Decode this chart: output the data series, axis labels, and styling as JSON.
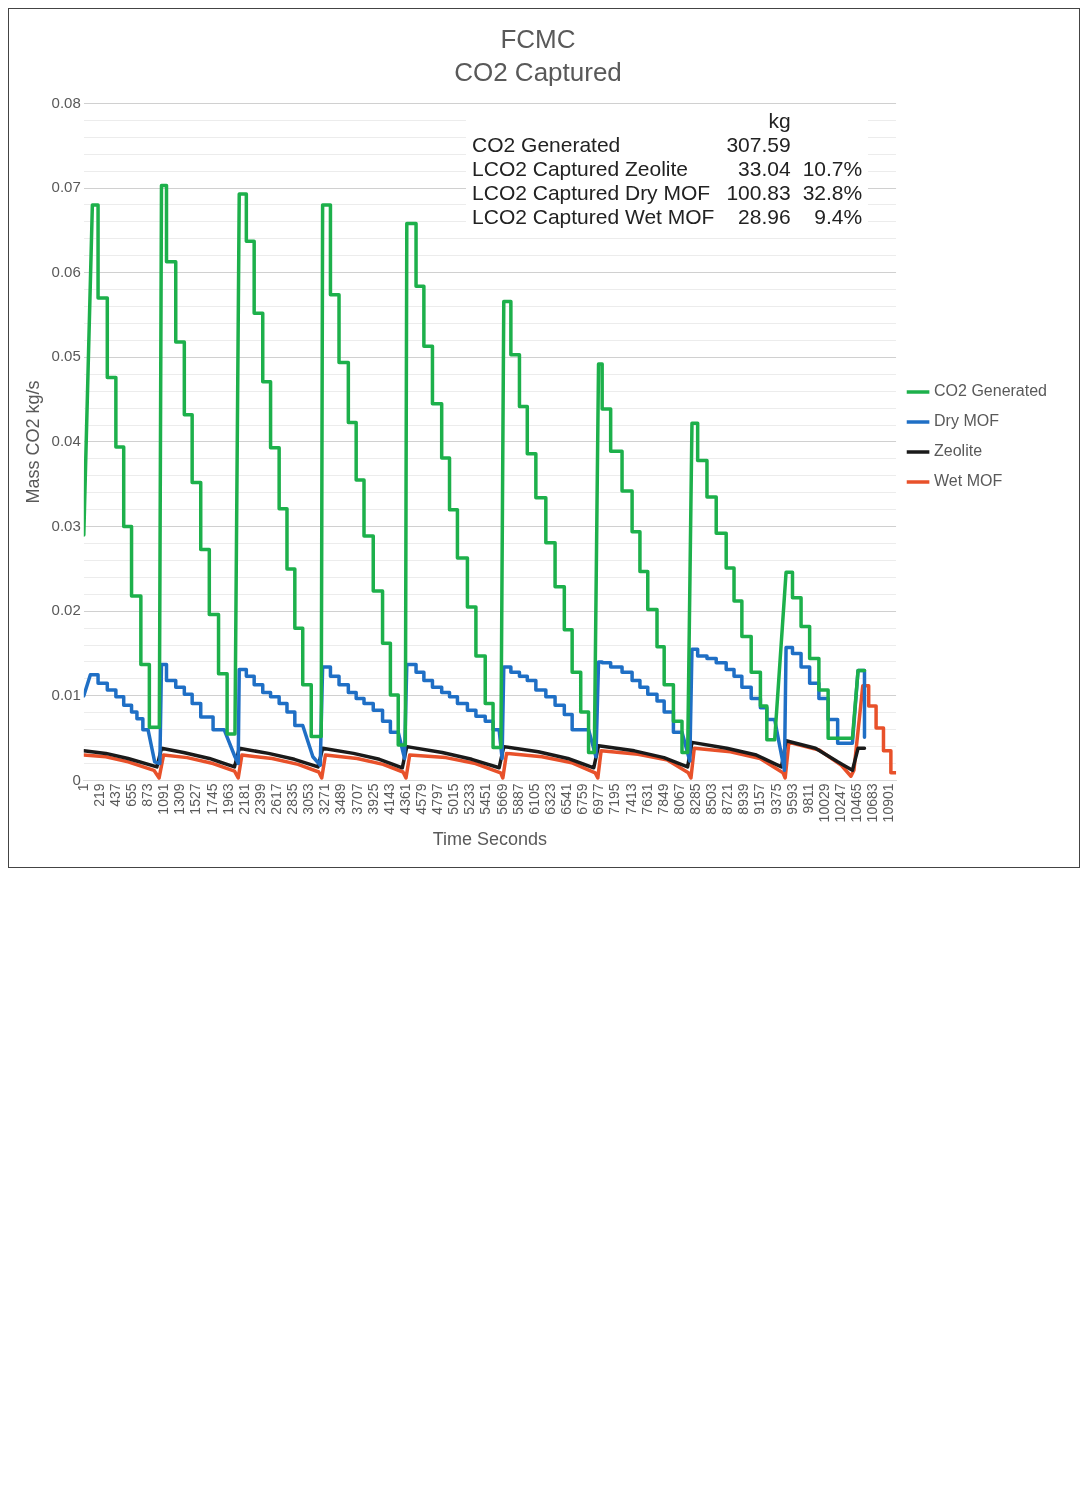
{
  "chart_data": {
    "type": "line",
    "title": "FCMC",
    "subtitle": "CO2 Captured",
    "xlabel": "Time Seconds",
    "ylabel": "Mass CO2 kg/s",
    "annotations": [
      "\tkg\t",
      "CO2 Generated\t307.59\t",
      "LCO2 Captured Zeolite\t33.04\t10.7%",
      "LCO2 Captured Dry MOF\t100.83\t32.8%",
      "LCO2 Captured Wet MOF\t28.96\t9.4%"
    ],
    "xlim": [
      1,
      10990
    ],
    "xticks": [
      1,
      219,
      437,
      655,
      873,
      1091,
      1309,
      1527,
      1745,
      1963,
      2181,
      2399,
      2617,
      2835,
      3053,
      3271,
      3489,
      3707,
      3925,
      4143,
      4361,
      4579,
      4797,
      5015,
      5233,
      5451,
      5669,
      5887,
      6105,
      6323,
      6541,
      6759,
      6977,
      7195,
      7413,
      7631,
      7849,
      8067,
      8285,
      8503,
      8721,
      8939,
      9157,
      9375,
      9593,
      9811,
      10029,
      10247,
      10465,
      10683,
      10901
    ],
    "ylim": [
      0,
      0.08
    ],
    "yticks": [
      0,
      {
        "value": 0.002,
        "label": null
      },
      {
        "value": 0.004,
        "label": null
      },
      {
        "value": 0.006,
        "label": null
      },
      {
        "value": 0.008,
        "label": null
      },
      0.01,
      {
        "value": 0.012,
        "label": null
      },
      {
        "value": 0.014,
        "label": null
      },
      {
        "value": 0.016,
        "label": null
      },
      {
        "value": 0.018,
        "label": null
      },
      0.02,
      {
        "value": 0.022,
        "label": null
      },
      {
        "value": 0.024,
        "label": null
      },
      {
        "value": 0.026,
        "label": null
      },
      {
        "value": 0.028,
        "label": null
      },
      0.03,
      {
        "value": 0.032,
        "label": null
      },
      {
        "value": 0.034,
        "label": null
      },
      {
        "value": 0.036,
        "label": null
      },
      {
        "value": 0.038,
        "label": null
      },
      0.04,
      {
        "value": 0.042,
        "label": null
      },
      {
        "value": 0.044,
        "label": null
      },
      {
        "value": 0.046,
        "label": null
      },
      {
        "value": 0.048,
        "label": null
      },
      0.05,
      {
        "value": 0.052,
        "label": null
      },
      {
        "value": 0.054,
        "label": null
      },
      {
        "value": 0.056,
        "label": null
      },
      {
        "value": 0.058,
        "label": null
      },
      0.06,
      {
        "value": 0.062,
        "label": null
      },
      {
        "value": 0.064,
        "label": null
      },
      {
        "value": 0.066,
        "label": null
      },
      {
        "value": 0.068,
        "label": null
      },
      0.07,
      {
        "value": 0.072,
        "label": null
      },
      {
        "value": 0.074,
        "label": null
      },
      {
        "value": 0.076,
        "label": null
      },
      {
        "value": 0.078,
        "label": null
      },
      0.08
    ],
    "grid": "y",
    "legend": "right",
    "marker": "none",
    "line_style": "solid",
    "series": [
      {
        "name": "CO2 Generated",
        "color": "#1db04b",
        "x": [
          1,
          117,
          194,
          194,
          319,
          319,
          435,
          435,
          541,
          541,
          647,
          647,
          773,
          773,
          888,
          888,
          1023,
          1052,
          1120,
          1120,
          1245,
          1245,
          1361,
          1361,
          1467,
          1467,
          1583,
          1583,
          1699,
          1699,
          1824,
          1824,
          1940,
          1940,
          2046,
          2104,
          2200,
          2200,
          2306,
          2306,
          2422,
          2422,
          2528,
          2528,
          2644,
          2644,
          2750,
          2750,
          2856,
          2856,
          2963,
          2963,
          3078,
          3078,
          3213,
          3232,
          3338,
          3338,
          3454,
          3454,
          3580,
          3580,
          3686,
          3686,
          3792,
          3792,
          3917,
          3917,
          4043,
          4043,
          4149,
          4149,
          4255,
          4255,
          4351,
          4371,
          4496,
          4496,
          4602,
          4602,
          4718,
          4718,
          4843,
          4843,
          4949,
          4949,
          5056,
          5056,
          5191,
          5191,
          5306,
          5306,
          5432,
          5432,
          5538,
          5538,
          5644,
          5683,
          5779,
          5779,
          5895,
          5895,
          6001,
          6001,
          6117,
          6117,
          6252,
          6252,
          6377,
          6377,
          6502,
          6502,
          6608,
          6608,
          6724,
          6724,
          6830,
          6830,
          6908,
          6965,
          7014,
          7014,
          7129,
          7129,
          7283,
          7283,
          7419,
          7419,
          7525,
          7525,
          7631,
          7631,
          7756,
          7756,
          7853,
          7853,
          7978,
          7978,
          8094,
          8094,
          8171,
          8229,
          8306,
          8306,
          8432,
          8432,
          8557,
          8557,
          8692,
          8692,
          8798,
          8798,
          8904,
          8904,
          9030,
          9030,
          9155,
          9155,
          9242,
          9242,
          9348,
          9502,
          9589,
          9589,
          9705,
          9705,
          9821,
          9821,
          9946,
          9946,
          10071,
          10071,
          10400,
          10476,
          10563
        ],
        "values": [
          0.029,
          0.068,
          0.068,
          0.057,
          0.057,
          0.0476,
          0.0476,
          0.0394,
          0.0394,
          0.03,
          0.03,
          0.0218,
          0.0218,
          0.0137,
          0.0137,
          0.0063,
          0.0063,
          0.0703,
          0.0703,
          0.0613,
          0.0613,
          0.0518,
          0.0518,
          0.0432,
          0.0432,
          0.0352,
          0.0352,
          0.0273,
          0.0273,
          0.0196,
          0.0196,
          0.0126,
          0.0126,
          0.0055,
          0.0055,
          0.0693,
          0.0693,
          0.0637,
          0.0637,
          0.0552,
          0.0552,
          0.0471,
          0.0471,
          0.0393,
          0.0393,
          0.0321,
          0.0321,
          0.025,
          0.025,
          0.018,
          0.018,
          0.0113,
          0.0113,
          0.0052,
          0.0052,
          0.068,
          0.068,
          0.0574,
          0.0574,
          0.0494,
          0.0494,
          0.0423,
          0.0423,
          0.0355,
          0.0355,
          0.0289,
          0.0289,
          0.0224,
          0.0224,
          0.0162,
          0.0162,
          0.0101,
          0.0101,
          0.0042,
          0.0042,
          0.0658,
          0.0658,
          0.0584,
          0.0584,
          0.0513,
          0.0513,
          0.0445,
          0.0445,
          0.0381,
          0.0381,
          0.032,
          0.032,
          0.0263,
          0.0263,
          0.0205,
          0.0205,
          0.0147,
          0.0147,
          0.0091,
          0.0091,
          0.0039,
          0.0039,
          0.0566,
          0.0566,
          0.0503,
          0.0503,
          0.0442,
          0.0442,
          0.0386,
          0.0386,
          0.0334,
          0.0334,
          0.0281,
          0.0281,
          0.0229,
          0.0229,
          0.0178,
          0.0178,
          0.0128,
          0.0128,
          0.0081,
          0.0081,
          0.0033,
          0.0033,
          0.0492,
          0.0492,
          0.0439,
          0.0439,
          0.0389,
          0.0389,
          0.0342,
          0.0342,
          0.0294,
          0.0294,
          0.0247,
          0.0247,
          0.0202,
          0.0202,
          0.0158,
          0.0158,
          0.0113,
          0.0113,
          0.007,
          0.007,
          0.0033,
          0.0033,
          0.0422,
          0.0422,
          0.0378,
          0.0378,
          0.0335,
          0.0335,
          0.0292,
          0.0292,
          0.0251,
          0.0251,
          0.0212,
          0.0212,
          0.017,
          0.017,
          0.0128,
          0.0128,
          0.0088,
          0.0088,
          0.0048,
          0.0048,
          0.0246,
          0.0246,
          0.0216,
          0.0216,
          0.0182,
          0.0182,
          0.0144,
          0.0144,
          0.0107,
          0.0107,
          0.005,
          0.005,
          0.013,
          0.013
        ]
      },
      {
        "name": "Dry MOF",
        "color": "#1f6fc5",
        "x": [
          1,
          90,
          194,
          194,
          319,
          319,
          435,
          435,
          541,
          541,
          647,
          647,
          720,
          720,
          800,
          800,
          870,
          960,
          1030,
          1052,
          1120,
          1120,
          1245,
          1245,
          1361,
          1361,
          1467,
          1467,
          1583,
          1583,
          1750,
          1750,
          1900,
          2046,
          2090,
          2104,
          2200,
          2200,
          2306,
          2306,
          2422,
          2422,
          2528,
          2528,
          2644,
          2644,
          2750,
          2750,
          2856,
          2856,
          2963,
          3100,
          3200,
          3232,
          3338,
          3338,
          3454,
          3454,
          3580,
          3580,
          3686,
          3686,
          3792,
          3792,
          3917,
          3917,
          4043,
          4043,
          4149,
          4149,
          4255,
          4340,
          4371,
          4496,
          4496,
          4602,
          4602,
          4718,
          4718,
          4843,
          4843,
          4949,
          4949,
          5056,
          5056,
          5191,
          5191,
          5306,
          5306,
          5432,
          5432,
          5538,
          5538,
          5620,
          5660,
          5683,
          5779,
          5779,
          5895,
          5895,
          6001,
          6001,
          6117,
          6117,
          6252,
          6252,
          6377,
          6377,
          6502,
          6502,
          6608,
          6608,
          6830,
          6930,
          6965,
          7014,
          7014,
          7129,
          7129,
          7283,
          7283,
          7419,
          7419,
          7525,
          7525,
          7631,
          7631,
          7756,
          7756,
          7853,
          7853,
          7978,
          7978,
          8094,
          8200,
          8229,
          8306,
          8306,
          8432,
          8432,
          8557,
          8557,
          8692,
          8692,
          8798,
          8798,
          8904,
          8904,
          9030,
          9030,
          9155,
          9155,
          9242,
          9242,
          9348,
          9400,
          9480,
          9502,
          9589,
          9589,
          9705,
          9705,
          9821,
          9821,
          9946,
          9946,
          10071,
          10071,
          10200,
          10200,
          10400,
          10476,
          10563,
          10563
        ],
        "values": [
          0.01,
          0.0125,
          0.0125,
          0.0115,
          0.0115,
          0.0107,
          0.0107,
          0.0099,
          0.0099,
          0.0089,
          0.0089,
          0.0081,
          0.0081,
          0.0073,
          0.0073,
          0.006,
          0.006,
          0.0022,
          0.002,
          0.0137,
          0.0137,
          0.0118,
          0.0118,
          0.011,
          0.011,
          0.0102,
          0.0102,
          0.0091,
          0.0091,
          0.0075,
          0.0075,
          0.006,
          0.006,
          0.0028,
          0.002,
          0.0131,
          0.0131,
          0.0123,
          0.0123,
          0.0113,
          0.0113,
          0.0104,
          0.0104,
          0.0099,
          0.0099,
          0.0091,
          0.0091,
          0.0081,
          0.0081,
          0.0065,
          0.0065,
          0.0028,
          0.0018,
          0.0134,
          0.0134,
          0.0123,
          0.0123,
          0.0113,
          0.0113,
          0.0104,
          0.0104,
          0.0097,
          0.0097,
          0.0091,
          0.0091,
          0.0083,
          0.0083,
          0.007,
          0.007,
          0.0057,
          0.0057,
          0.0026,
          0.0137,
          0.0137,
          0.0128,
          0.0128,
          0.0118,
          0.0118,
          0.011,
          0.011,
          0.0104,
          0.0104,
          0.0099,
          0.0099,
          0.0091,
          0.0091,
          0.0083,
          0.0083,
          0.0076,
          0.0076,
          0.007,
          0.007,
          0.006,
          0.006,
          0.0026,
          0.0134,
          0.0134,
          0.0128,
          0.0128,
          0.0123,
          0.0123,
          0.0118,
          0.0118,
          0.0107,
          0.0107,
          0.0099,
          0.0099,
          0.0089,
          0.0089,
          0.0078,
          0.0078,
          0.006,
          0.006,
          0.0028,
          0.014,
          0.014,
          0.0139,
          0.0139,
          0.0134,
          0.0134,
          0.0128,
          0.0128,
          0.0118,
          0.0118,
          0.011,
          0.011,
          0.0102,
          0.0102,
          0.0094,
          0.0094,
          0.0081,
          0.0081,
          0.0057,
          0.0057,
          0.0023,
          0.0155,
          0.0155,
          0.0147,
          0.0147,
          0.0144,
          0.0144,
          0.0139,
          0.0139,
          0.0131,
          0.0131,
          0.0123,
          0.0123,
          0.011,
          0.011,
          0.0097,
          0.0097,
          0.0086,
          0.0086,
          0.0072,
          0.0072,
          0.0048,
          0.0012,
          0.0157,
          0.0157,
          0.015,
          0.015,
          0.0134,
          0.0134,
          0.0115,
          0.0115,
          0.0097,
          0.0097,
          0.0072,
          0.0072,
          0.0044,
          0.0044,
          0.013,
          0.013,
          0.0051
        ]
      },
      {
        "name": "Zeolite",
        "color": "#1a1a1a",
        "x": [
          1,
          300,
          600,
          990,
          1052,
          1350,
          1700,
          2040,
          2104,
          2500,
          2850,
          3170,
          3232,
          3650,
          4000,
          4310,
          4371,
          4850,
          5250,
          5620,
          5683,
          6150,
          6550,
          6900,
          6965,
          7450,
          7850,
          8170,
          8229,
          8700,
          9100,
          9440,
          9502,
          9900,
          10200,
          10400,
          10476,
          10563
        ],
        "values": [
          0.0035,
          0.0032,
          0.0026,
          0.0016,
          0.0038,
          0.0033,
          0.0026,
          0.0016,
          0.0038,
          0.0032,
          0.0025,
          0.0016,
          0.0038,
          0.0032,
          0.0025,
          0.0015,
          0.004,
          0.0033,
          0.0025,
          0.0015,
          0.004,
          0.0034,
          0.0026,
          0.0015,
          0.0041,
          0.0035,
          0.0027,
          0.0016,
          0.0045,
          0.0038,
          0.003,
          0.0016,
          0.0047,
          0.0038,
          0.0022,
          0.0012,
          0.0038,
          0.0038
        ]
      },
      {
        "name": "Wet MOF",
        "color": "#e8512a",
        "x": [
          1,
          300,
          600,
          950,
          1020,
          1080,
          1400,
          1750,
          2040,
          2090,
          2140,
          2550,
          2900,
          3180,
          3220,
          3270,
          3700,
          4050,
          4320,
          4360,
          4410,
          4900,
          5300,
          5640,
          5670,
          5720,
          6200,
          6600,
          6920,
          6955,
          7000,
          7500,
          7900,
          8180,
          8215,
          8260,
          8750,
          9150,
          9460,
          9490,
          9540,
          9950,
          10250,
          10380,
          10420,
          10540,
          10620,
          10620,
          10720,
          10720,
          10820,
          10820,
          10920,
          10920,
          10990
        ],
        "values": [
          0.003,
          0.0028,
          0.0022,
          0.0012,
          0.0003,
          0.003,
          0.0027,
          0.002,
          0.0011,
          0.0003,
          0.003,
          0.0026,
          0.0019,
          0.001,
          0.0003,
          0.003,
          0.0026,
          0.0019,
          0.001,
          0.0003,
          0.003,
          0.0027,
          0.002,
          0.0009,
          0.0003,
          0.0032,
          0.0028,
          0.0021,
          0.0009,
          0.0003,
          0.0035,
          0.0031,
          0.0024,
          0.0009,
          0.0003,
          0.0038,
          0.0034,
          0.0026,
          0.0009,
          0.0003,
          0.0045,
          0.0036,
          0.0018,
          0.0005,
          0.0012,
          0.0112,
          0.0112,
          0.0088,
          0.0088,
          0.0062,
          0.0062,
          0.0035,
          0.0035,
          0.0009,
          0.0009
        ]
      }
    ]
  }
}
